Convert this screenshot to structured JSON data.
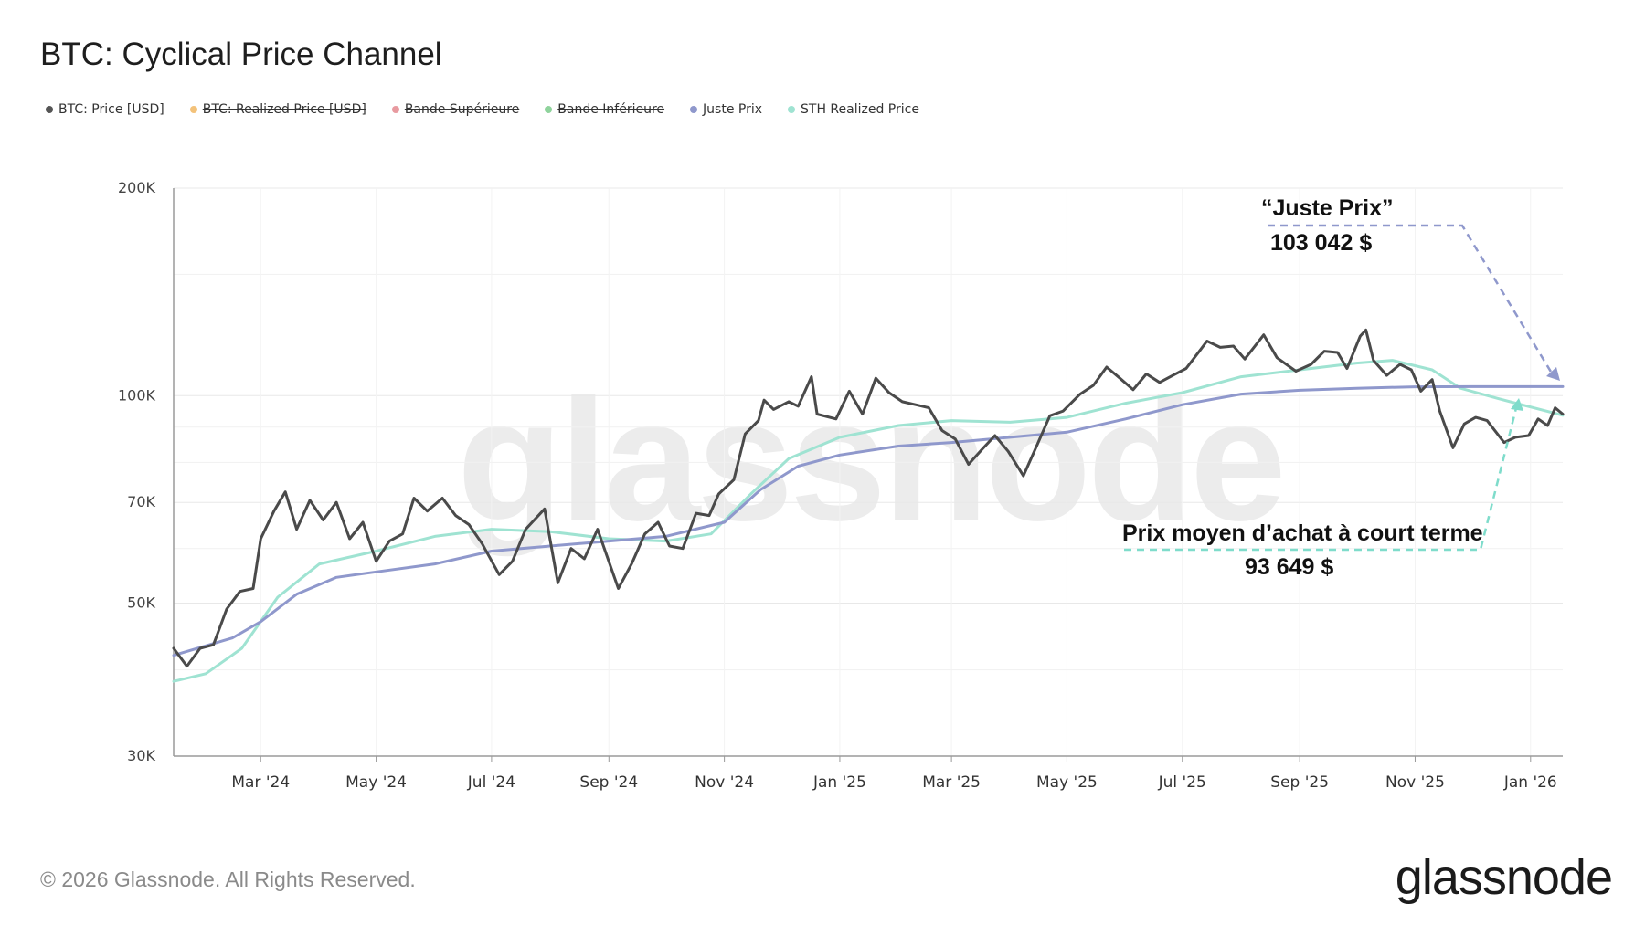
{
  "title": "BTC: Cyclical Price Channel",
  "legend": [
    {
      "label": "BTC: Price [USD]",
      "color": "#555555",
      "active": true
    },
    {
      "label": "BTC: Realized Price [USD]",
      "color": "#f3c27a",
      "active": false
    },
    {
      "label": "Bande Supérieure",
      "color": "#e89aa0",
      "active": false
    },
    {
      "label": "Bande Inférieure",
      "color": "#8fd39c",
      "active": false
    },
    {
      "label": "Juste Prix",
      "color": "#8f98cc",
      "active": true
    },
    {
      "label": "STH Realized Price",
      "color": "#9fe3d2",
      "active": true
    }
  ],
  "annotations": {
    "juste_prix_label": "“Juste Prix”",
    "juste_prix_value": "103 042 $",
    "sth_label": "Prix moyen d’achat à court terme",
    "sth_value": "93 649 $"
  },
  "watermark": "glassnode",
  "footer": "© 2026 Glassnode. All Rights Reserved.",
  "brand": "glassnode",
  "chart_data": {
    "type": "line",
    "y_scale": "log",
    "ylim": [
      30000,
      200000
    ],
    "y_ticks": [
      {
        "value": 30000,
        "label": "30K"
      },
      {
        "value": 50000,
        "label": "50K"
      },
      {
        "value": 70000,
        "label": "70K"
      },
      {
        "value": 100000,
        "label": "100K"
      },
      {
        "value": 200000,
        "label": "200K"
      }
    ],
    "xlim": [
      "2024-01-15",
      "2026-01-18"
    ],
    "x_ticks": [
      {
        "date": "2024-03-01",
        "label": "Mar '24"
      },
      {
        "date": "2024-05-01",
        "label": "May '24"
      },
      {
        "date": "2024-07-01",
        "label": "Jul '24"
      },
      {
        "date": "2024-09-01",
        "label": "Sep '24"
      },
      {
        "date": "2024-11-01",
        "label": "Nov '24"
      },
      {
        "date": "2025-01-01",
        "label": "Jan '25"
      },
      {
        "date": "2025-03-01",
        "label": "Mar '25"
      },
      {
        "date": "2025-05-01",
        "label": "May '25"
      },
      {
        "date": "2025-07-01",
        "label": "Jul '25"
      },
      {
        "date": "2025-09-01",
        "label": "Sep '25"
      },
      {
        "date": "2025-11-01",
        "label": "Nov '25"
      },
      {
        "date": "2026-01-01",
        "label": "Jan '26"
      }
    ],
    "series": [
      {
        "name": "BTC: Price [USD]",
        "color": "#4a4a4a",
        "points": [
          [
            "2024-01-15",
            43000
          ],
          [
            "2024-01-22",
            40500
          ],
          [
            "2024-01-29",
            43000
          ],
          [
            "2024-02-05",
            43500
          ],
          [
            "2024-02-12",
            49000
          ],
          [
            "2024-02-19",
            52000
          ],
          [
            "2024-02-26",
            52500
          ],
          [
            "2024-03-01",
            62000
          ],
          [
            "2024-03-08",
            68000
          ],
          [
            "2024-03-14",
            72500
          ],
          [
            "2024-03-20",
            64000
          ],
          [
            "2024-03-27",
            70500
          ],
          [
            "2024-04-03",
            66000
          ],
          [
            "2024-04-10",
            70000
          ],
          [
            "2024-04-17",
            62000
          ],
          [
            "2024-04-24",
            65500
          ],
          [
            "2024-05-01",
            57500
          ],
          [
            "2024-05-08",
            61500
          ],
          [
            "2024-05-15",
            63000
          ],
          [
            "2024-05-21",
            71000
          ],
          [
            "2024-05-28",
            68000
          ],
          [
            "2024-06-05",
            71000
          ],
          [
            "2024-06-12",
            67000
          ],
          [
            "2024-06-19",
            65000
          ],
          [
            "2024-06-26",
            61000
          ],
          [
            "2024-07-05",
            55000
          ],
          [
            "2024-07-12",
            57500
          ],
          [
            "2024-07-19",
            64000
          ],
          [
            "2024-07-29",
            68500
          ],
          [
            "2024-08-05",
            53500
          ],
          [
            "2024-08-12",
            60000
          ],
          [
            "2024-08-19",
            58000
          ],
          [
            "2024-08-26",
            64000
          ],
          [
            "2024-09-06",
            52500
          ],
          [
            "2024-09-13",
            57000
          ],
          [
            "2024-09-20",
            63000
          ],
          [
            "2024-09-27",
            65500
          ],
          [
            "2024-10-03",
            60500
          ],
          [
            "2024-10-10",
            60000
          ],
          [
            "2024-10-17",
            67500
          ],
          [
            "2024-10-24",
            67000
          ],
          [
            "2024-10-29",
            72000
          ],
          [
            "2024-11-06",
            75500
          ],
          [
            "2024-11-12",
            88000
          ],
          [
            "2024-11-19",
            92000
          ],
          [
            "2024-11-22",
            98500
          ],
          [
            "2024-11-27",
            95500
          ],
          [
            "2024-12-05",
            98000
          ],
          [
            "2024-12-10",
            96500
          ],
          [
            "2024-12-17",
            106500
          ],
          [
            "2024-12-20",
            94000
          ],
          [
            "2024-12-30",
            92500
          ],
          [
            "2025-01-06",
            101500
          ],
          [
            "2025-01-13",
            94000
          ],
          [
            "2025-01-20",
            106000
          ],
          [
            "2025-01-27",
            101000
          ],
          [
            "2025-02-03",
            98000
          ],
          [
            "2025-02-10",
            97000
          ],
          [
            "2025-02-17",
            96000
          ],
          [
            "2025-02-24",
            89000
          ],
          [
            "2025-03-03",
            86500
          ],
          [
            "2025-03-10",
            79500
          ],
          [
            "2025-03-17",
            83500
          ],
          [
            "2025-03-24",
            87500
          ],
          [
            "2025-03-31",
            83000
          ],
          [
            "2025-04-08",
            76500
          ],
          [
            "2025-04-15",
            84500
          ],
          [
            "2025-04-22",
            93500
          ],
          [
            "2025-04-29",
            95000
          ],
          [
            "2025-05-08",
            100500
          ],
          [
            "2025-05-15",
            103500
          ],
          [
            "2025-05-22",
            110000
          ],
          [
            "2025-05-29",
            106000
          ],
          [
            "2025-06-05",
            102000
          ],
          [
            "2025-06-12",
            107500
          ],
          [
            "2025-06-19",
            104500
          ],
          [
            "2025-06-26",
            107000
          ],
          [
            "2025-07-03",
            109500
          ],
          [
            "2025-07-10",
            116000
          ],
          [
            "2025-07-14",
            120000
          ],
          [
            "2025-07-21",
            117500
          ],
          [
            "2025-07-28",
            118000
          ],
          [
            "2025-08-03",
            113000
          ],
          [
            "2025-08-13",
            122500
          ],
          [
            "2025-08-20",
            113500
          ],
          [
            "2025-08-30",
            108500
          ],
          [
            "2025-09-07",
            111000
          ],
          [
            "2025-09-14",
            116000
          ],
          [
            "2025-09-21",
            115500
          ],
          [
            "2025-09-26",
            109500
          ],
          [
            "2025-10-03",
            122000
          ],
          [
            "2025-10-06",
            124500
          ],
          [
            "2025-10-10",
            112500
          ],
          [
            "2025-10-17",
            107000
          ],
          [
            "2025-10-24",
            111000
          ],
          [
            "2025-10-30",
            109000
          ],
          [
            "2025-11-04",
            101500
          ],
          [
            "2025-11-10",
            105500
          ],
          [
            "2025-11-14",
            95000
          ],
          [
            "2025-11-21",
            84000
          ],
          [
            "2025-11-27",
            91000
          ],
          [
            "2025-12-03",
            93000
          ],
          [
            "2025-12-09",
            92000
          ],
          [
            "2025-12-18",
            85500
          ],
          [
            "2025-12-24",
            87000
          ],
          [
            "2025-12-31",
            87500
          ],
          [
            "2026-01-05",
            92500
          ],
          [
            "2026-01-10",
            90500
          ],
          [
            "2026-01-14",
            96000
          ],
          [
            "2026-01-18",
            94000
          ]
        ]
      },
      {
        "name": "Juste Prix",
        "color": "#8f98cc",
        "points": [
          [
            "2024-01-15",
            42000
          ],
          [
            "2024-02-15",
            44500
          ],
          [
            "2024-03-01",
            47000
          ],
          [
            "2024-03-20",
            51500
          ],
          [
            "2024-04-10",
            54500
          ],
          [
            "2024-05-01",
            55500
          ],
          [
            "2024-06-01",
            57000
          ],
          [
            "2024-07-01",
            59500
          ],
          [
            "2024-08-01",
            60500
          ],
          [
            "2024-09-01",
            61500
          ],
          [
            "2024-10-01",
            62500
          ],
          [
            "2024-11-01",
            65500
          ],
          [
            "2024-11-20",
            73000
          ],
          [
            "2024-12-10",
            79000
          ],
          [
            "2025-01-01",
            82000
          ],
          [
            "2025-02-01",
            84500
          ],
          [
            "2025-03-01",
            85500
          ],
          [
            "2025-04-01",
            87000
          ],
          [
            "2025-05-01",
            88500
          ],
          [
            "2025-06-01",
            92500
          ],
          [
            "2025-07-01",
            97000
          ],
          [
            "2025-08-01",
            100500
          ],
          [
            "2025-09-01",
            101800
          ],
          [
            "2025-10-01",
            102500
          ],
          [
            "2025-11-01",
            103000
          ],
          [
            "2025-12-01",
            103042
          ],
          [
            "2026-01-18",
            103042
          ]
        ]
      },
      {
        "name": "STH Realized Price",
        "color": "#9fe3d2",
        "points": [
          [
            "2024-01-15",
            38500
          ],
          [
            "2024-02-01",
            39500
          ],
          [
            "2024-02-20",
            43000
          ],
          [
            "2024-03-10",
            51000
          ],
          [
            "2024-04-01",
            57000
          ],
          [
            "2024-05-01",
            59500
          ],
          [
            "2024-06-01",
            62500
          ],
          [
            "2024-07-01",
            64000
          ],
          [
            "2024-08-01",
            63500
          ],
          [
            "2024-09-01",
            62000
          ],
          [
            "2024-10-01",
            61500
          ],
          [
            "2024-10-25",
            63000
          ],
          [
            "2024-11-15",
            72000
          ],
          [
            "2024-12-05",
            81000
          ],
          [
            "2025-01-01",
            87000
          ],
          [
            "2025-02-01",
            90500
          ],
          [
            "2025-03-01",
            92000
          ],
          [
            "2025-04-01",
            91500
          ],
          [
            "2025-05-01",
            93000
          ],
          [
            "2025-06-01",
            97500
          ],
          [
            "2025-07-01",
            101000
          ],
          [
            "2025-08-01",
            106500
          ],
          [
            "2025-09-01",
            109000
          ],
          [
            "2025-10-01",
            111500
          ],
          [
            "2025-10-20",
            112500
          ],
          [
            "2025-11-10",
            109000
          ],
          [
            "2025-11-25",
            102500
          ],
          [
            "2025-12-15",
            99000
          ],
          [
            "2026-01-18",
            93649
          ]
        ]
      }
    ]
  }
}
